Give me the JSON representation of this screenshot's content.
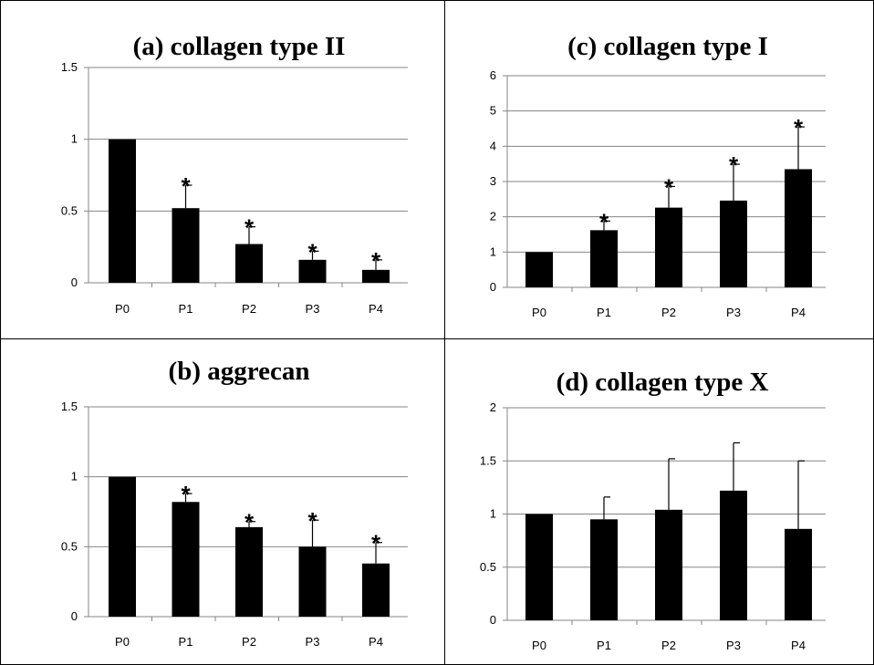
{
  "chart_data": [
    {
      "type": "bar",
      "title": "(a) collagen type II",
      "xlabel": "",
      "ylabel": "",
      "categories": [
        "P0",
        "P1",
        "P2",
        "P3",
        "P4"
      ],
      "values": [
        1,
        0.52,
        0.27,
        0.16,
        0.09
      ],
      "error_upper": [
        0,
        0.16,
        0.12,
        0.06,
        0.07
      ],
      "significance": [
        "",
        "*",
        "*",
        "*",
        "*"
      ],
      "ylim": [
        0,
        1.5
      ],
      "yticks": [
        "0",
        "0.5",
        "1",
        "1.5"
      ],
      "grid": true,
      "bar_color": "#000000"
    },
    {
      "type": "bar",
      "title": "(b) aggrecan",
      "xlabel": "",
      "ylabel": "",
      "categories": [
        "P0",
        "P1",
        "P2",
        "P3",
        "P4"
      ],
      "values": [
        1,
        0.82,
        0.64,
        0.5,
        0.38
      ],
      "error_upper": [
        0,
        0.06,
        0.04,
        0.19,
        0.15
      ],
      "significance": [
        "",
        "*",
        "*",
        "*",
        "*"
      ],
      "ylim": [
        0,
        1.5
      ],
      "yticks": [
        "0",
        "0.5",
        "1",
        "1.5"
      ],
      "grid": true,
      "bar_color": "#000000"
    },
    {
      "type": "bar",
      "title": "(c) collagen type I",
      "xlabel": "",
      "ylabel": "",
      "categories": [
        "P0",
        "P1",
        "P2",
        "P3",
        "P4"
      ],
      "values": [
        1,
        1.62,
        2.26,
        2.46,
        3.35
      ],
      "error_upper": [
        0,
        0.26,
        0.6,
        1.03,
        1.2
      ],
      "significance": [
        "",
        "*",
        "*",
        "*",
        "*"
      ],
      "ylim": [
        0,
        6
      ],
      "yticks": [
        "0",
        "1",
        "2",
        "3",
        "4",
        "5",
        "6"
      ],
      "grid": true,
      "bar_color": "#000000"
    },
    {
      "type": "bar",
      "title": "(d) collagen type X",
      "xlabel": "",
      "ylabel": "",
      "categories": [
        "P0",
        "P1",
        "P2",
        "P3",
        "P4"
      ],
      "values": [
        1,
        0.95,
        1.04,
        1.22,
        0.86
      ],
      "error_upper": [
        0,
        0.21,
        0.48,
        0.45,
        0.64
      ],
      "significance": [
        "",
        "",
        "",
        "",
        ""
      ],
      "ylim": [
        0,
        2
      ],
      "yticks": [
        "0",
        "0.5",
        "1",
        "1.5",
        "2"
      ],
      "grid": true,
      "bar_color": "#000000"
    }
  ]
}
